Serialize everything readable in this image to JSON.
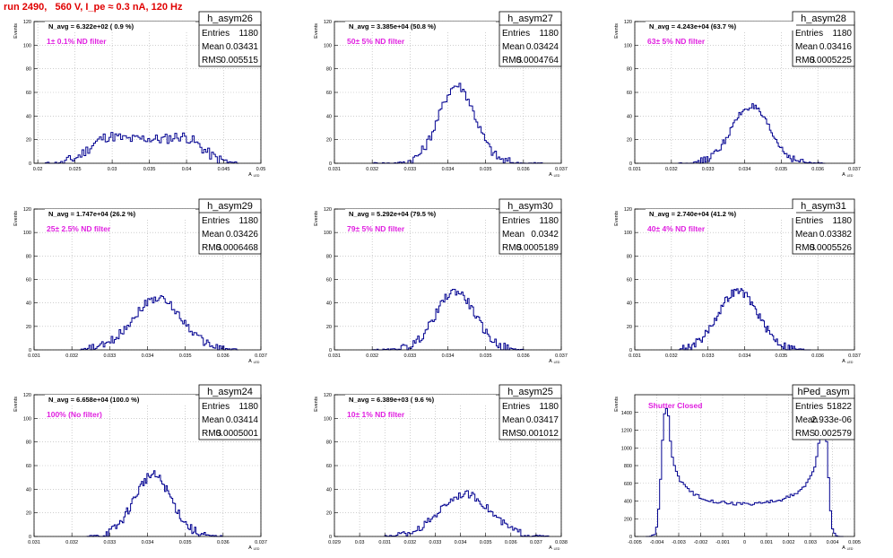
{
  "page_title": "run 2490,   560 V, I_pe ≈ 0.3 nA, 120 Hz",
  "ylabel": "Events",
  "xlabel_main": "A",
  "xlabel_sub": "LED",
  "stats_labels": {
    "entries": "Entries",
    "mean": "Mean",
    "rms": "RMS"
  },
  "colors": {
    "hist": "#000090",
    "annotation": "#e020e0",
    "title": "#e00000",
    "grid": "#b0b0b0"
  },
  "chart_data": [
    {
      "type": "bar",
      "name": "h_asym26",
      "navg": "N_avg = 6.322e+02 ( 0.9 %)",
      "filter": "1± 0.1% ND filter",
      "entries": "1180",
      "mean": "0.03431",
      "rms": "0.005515",
      "xlim": [
        0.0195,
        0.05
      ],
      "ylim": [
        0,
        120
      ],
      "xticks": [
        "0.02",
        "0.025",
        "0.03",
        "0.035",
        "0.04",
        "0.045",
        "0.05"
      ],
      "xtick_values": [
        0.02,
        0.025,
        0.03,
        0.035,
        0.04,
        0.045,
        0.05
      ],
      "yticks": [
        "0",
        "20",
        "40",
        "60",
        "80",
        "100",
        "120"
      ],
      "ytick_values": [
        0,
        20,
        40,
        60,
        80,
        100,
        120
      ],
      "dist": {
        "peaks": [
          {
            "mu": 0.0295,
            "sigma": 0.0025,
            "h": 22
          },
          {
            "mu": 0.0345,
            "sigma": 0.002,
            "h": 15
          },
          {
            "mu": 0.0395,
            "sigma": 0.0025,
            "h": 22
          }
        ],
        "range": [
          0.021,
          0.047
        ],
        "nbins": 100,
        "noise": 9
      }
    },
    {
      "type": "bar",
      "name": "h_asym27",
      "navg": "N_avg = 3.385e+04 (50.8 %)",
      "filter": "50± 5% ND filter",
      "entries": "1180",
      "mean": "0.03424",
      "rms": "0.0004764",
      "xlim": [
        0.031,
        0.037
      ],
      "ylim": [
        0,
        120
      ],
      "xticks": [
        "0.031",
        "0.032",
        "0.033",
        "0.034",
        "0.035",
        "0.036",
        "0.037"
      ],
      "xtick_values": [
        0.031,
        0.032,
        0.033,
        0.034,
        0.035,
        0.036,
        0.037
      ],
      "yticks": [
        "0",
        "20",
        "40",
        "60",
        "80",
        "100",
        "120"
      ],
      "ytick_values": [
        0,
        20,
        40,
        60,
        80,
        100,
        120
      ],
      "dist": {
        "peaks": [
          {
            "mu": 0.03424,
            "sigma": 0.00048,
            "h": 66
          }
        ],
        "range": [
          0.032,
          0.0365
        ],
        "nbins": 100,
        "noise": 8
      }
    },
    {
      "type": "bar",
      "name": "h_asym28",
      "navg": "N_avg = 4.243e+04 (63.7 %)",
      "filter": "63± 5% ND filter",
      "entries": "1180",
      "mean": "0.03416",
      "rms": "0.0005225",
      "xlim": [
        0.031,
        0.037
      ],
      "ylim": [
        0,
        120
      ],
      "xticks": [
        "0.031",
        "0.032",
        "0.033",
        "0.034",
        "0.035",
        "0.036",
        "0.037"
      ],
      "xtick_values": [
        0.031,
        0.032,
        0.033,
        0.034,
        0.035,
        0.036,
        0.037
      ],
      "yticks": [
        "0",
        "20",
        "40",
        "60",
        "80",
        "100",
        "120"
      ],
      "ytick_values": [
        0,
        20,
        40,
        60,
        80,
        100,
        120
      ],
      "dist": {
        "peaks": [
          {
            "mu": 0.03416,
            "sigma": 0.00052,
            "h": 48
          }
        ],
        "range": [
          0.0322,
          0.0362
        ],
        "nbins": 100,
        "noise": 6
      }
    },
    {
      "type": "bar",
      "name": "h_asym29",
      "navg": "N_avg = 1.747e+04 (26.2 %)",
      "filter": "25± 2.5% ND filter",
      "entries": "1180",
      "mean": "0.03426",
      "rms": "0.0006468",
      "xlim": [
        0.031,
        0.037
      ],
      "ylim": [
        0,
        120
      ],
      "xticks": [
        "0.031",
        "0.032",
        "0.033",
        "0.034",
        "0.035",
        "0.036",
        "0.037"
      ],
      "xtick_values": [
        0.031,
        0.032,
        0.033,
        0.034,
        0.035,
        0.036,
        0.037
      ],
      "yticks": [
        "0",
        "20",
        "40",
        "60",
        "80",
        "100",
        "120"
      ],
      "ytick_values": [
        0,
        20,
        40,
        60,
        80,
        100,
        120
      ],
      "dist": {
        "peaks": [
          {
            "mu": 0.03426,
            "sigma": 0.00065,
            "h": 44
          }
        ],
        "range": [
          0.0322,
          0.0364
        ],
        "nbins": 100,
        "noise": 7
      }
    },
    {
      "type": "bar",
      "name": "h_asym30",
      "navg": "N_avg = 5.292e+04 (79.5 %)",
      "filter": "79± 5% ND filter",
      "entries": "1180",
      "mean": "0.0342",
      "rms": "0.0005189",
      "xlim": [
        0.031,
        0.037
      ],
      "ylim": [
        0,
        120
      ],
      "xticks": [
        "0.031",
        "0.032",
        "0.033",
        "0.034",
        "0.035",
        "0.036",
        "0.037"
      ],
      "xtick_values": [
        0.031,
        0.032,
        0.033,
        0.034,
        0.035,
        0.036,
        0.037
      ],
      "yticks": [
        "0",
        "20",
        "40",
        "60",
        "80",
        "100",
        "120"
      ],
      "ytick_values": [
        0,
        20,
        40,
        60,
        80,
        100,
        120
      ],
      "dist": {
        "peaks": [
          {
            "mu": 0.0342,
            "sigma": 0.00052,
            "h": 50
          }
        ],
        "range": [
          0.032,
          0.036
        ],
        "nbins": 100,
        "noise": 7
      }
    },
    {
      "type": "bar",
      "name": "h_asym31",
      "navg": "N_avg = 2.740e+04 (41.2 %)",
      "filter": "40± 4% ND filter",
      "entries": "1180",
      "mean": "0.03382",
      "rms": "0.0005526",
      "xlim": [
        0.031,
        0.037
      ],
      "ylim": [
        0,
        120
      ],
      "xticks": [
        "0.031",
        "0.032",
        "0.033",
        "0.034",
        "0.035",
        "0.036",
        "0.037"
      ],
      "xtick_values": [
        0.031,
        0.032,
        0.033,
        0.034,
        0.035,
        0.036,
        0.037
      ],
      "yticks": [
        "0",
        "20",
        "40",
        "60",
        "80",
        "100",
        "120"
      ],
      "ytick_values": [
        0,
        20,
        40,
        60,
        80,
        100,
        120
      ],
      "dist": {
        "peaks": [
          {
            "mu": 0.03382,
            "sigma": 0.00055,
            "h": 50
          }
        ],
        "range": [
          0.0322,
          0.0358
        ],
        "nbins": 100,
        "noise": 7
      }
    },
    {
      "type": "bar",
      "name": "h_asym24",
      "navg": "N_avg = 6.658e+04 (100.0 %)",
      "filter": "100% (No filter)",
      "entries": "1180",
      "mean": "0.03414",
      "rms": "0.0005001",
      "xlim": [
        0.031,
        0.037
      ],
      "ylim": [
        0,
        120
      ],
      "xticks": [
        "0.031",
        "0.032",
        "0.033",
        "0.034",
        "0.035",
        "0.036",
        "0.037"
      ],
      "xtick_values": [
        0.031,
        0.032,
        0.033,
        0.034,
        0.035,
        0.036,
        0.037
      ],
      "yticks": [
        "0",
        "20",
        "40",
        "60",
        "80",
        "100",
        "120"
      ],
      "ytick_values": [
        0,
        20,
        40,
        60,
        80,
        100,
        120
      ],
      "dist": {
        "peaks": [
          {
            "mu": 0.03414,
            "sigma": 0.0005,
            "h": 52
          }
        ],
        "range": [
          0.0324,
          0.036
        ],
        "nbins": 100,
        "noise": 8
      }
    },
    {
      "type": "bar",
      "name": "h_asym25",
      "navg": "N_avg = 6.389e+03 ( 9.6 %)",
      "filter": "10± 1% ND filter",
      "entries": "1180",
      "mean": "0.03417",
      "rms": "0.001012",
      "xlim": [
        0.029,
        0.038
      ],
      "ylim": [
        0,
        120
      ],
      "xticks": [
        "0.029",
        "0.03",
        "0.031",
        "0.032",
        "0.033",
        "0.034",
        "0.035",
        "0.036",
        "0.037",
        "0.038"
      ],
      "xtick_values": [
        0.029,
        0.03,
        0.031,
        0.032,
        0.033,
        0.034,
        0.035,
        0.036,
        0.037,
        0.038
      ],
      "yticks": [
        "0",
        "20",
        "40",
        "60",
        "80",
        "100",
        "120"
      ],
      "ytick_values": [
        0,
        20,
        40,
        60,
        80,
        100,
        120
      ],
      "dist": {
        "peaks": [
          {
            "mu": 0.03417,
            "sigma": 0.001,
            "h": 36
          }
        ],
        "range": [
          0.031,
          0.0375
        ],
        "nbins": 100,
        "noise": 6
      }
    },
    {
      "type": "bar",
      "name": "hPed_asym",
      "navg": "",
      "filter": "Shutter Closed",
      "entries": "51822",
      "mean": "2.933e-06",
      "rms": "0.002579",
      "xlim": [
        -0.005,
        0.005
      ],
      "ylim": [
        0,
        1600
      ],
      "xticks": [
        "-0.005",
        "-0.004",
        "-0.003",
        "-0.002",
        "-0.001",
        "0",
        "0.001",
        "0.002",
        "0.003",
        "0.004",
        "0.005"
      ],
      "xtick_values": [
        -0.005,
        -0.004,
        -0.003,
        -0.002,
        -0.001,
        0,
        0.001,
        0.002,
        0.003,
        0.004,
        0.005
      ],
      "yticks": [
        "0",
        "200",
        "400",
        "600",
        "800",
        "1000",
        "1200",
        "1400"
      ],
      "ytick_values": [
        0,
        200,
        400,
        600,
        800,
        1000,
        1200,
        1400
      ],
      "dist": {
        "arcsine": true,
        "amp": 0.0036,
        "base": 370,
        "peakh": 1450,
        "range": [
          -0.0045,
          0.0045
        ],
        "nbins": 100,
        "noise": 40
      }
    }
  ]
}
